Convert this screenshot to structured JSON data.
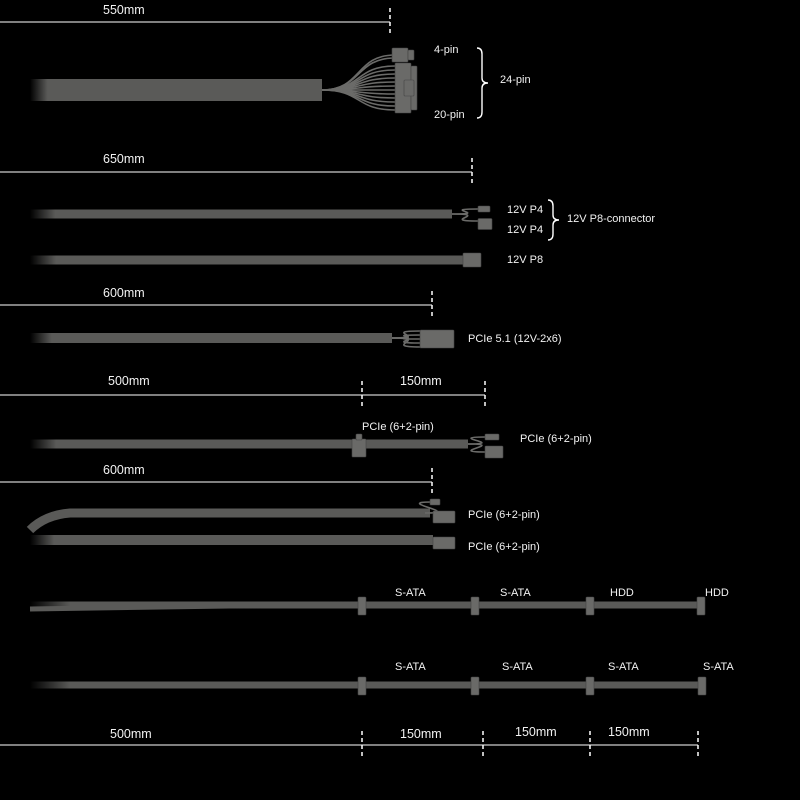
{
  "colors": {
    "background": "#000000",
    "cable": "#5a5a58",
    "connector": "#6a6a68",
    "dimension_line": "#ffffff",
    "text": "#f2f2f2"
  },
  "atx_cable": {
    "length": "550mm",
    "labels": {
      "top": "4-pin",
      "bottom": "20-pin",
      "combined": "24-pin"
    }
  },
  "cpu_cables": {
    "length": "650mm",
    "p4_a": "12V P4",
    "p4_b": "12V P4",
    "combined": "12V P8-connector",
    "p8": "12V P8"
  },
  "pcie5_cable": {
    "length": "600mm",
    "label": "PCIe 5.1 (12V-2x6)"
  },
  "pcie_daisy_cable": {
    "length_main": "500mm",
    "length_ext": "150mm",
    "mid_label": "PCIe (6+2-pin)",
    "end_label": "PCIe (6+2-pin)"
  },
  "pcie_dual_cable": {
    "length": "600mm",
    "label_a": "PCIe (6+2-pin)",
    "label_b": "PCIe (6+2-pin)"
  },
  "sata_hdd_cable": {
    "labels": [
      "S-ATA",
      "S-ATA",
      "HDD",
      "HDD"
    ]
  },
  "sata_cable": {
    "labels": [
      "S-ATA",
      "S-ATA",
      "S-ATA",
      "S-ATA"
    ]
  },
  "bottom_dimension": {
    "lengths": [
      "500mm",
      "150mm",
      "150mm",
      "150mm"
    ]
  }
}
